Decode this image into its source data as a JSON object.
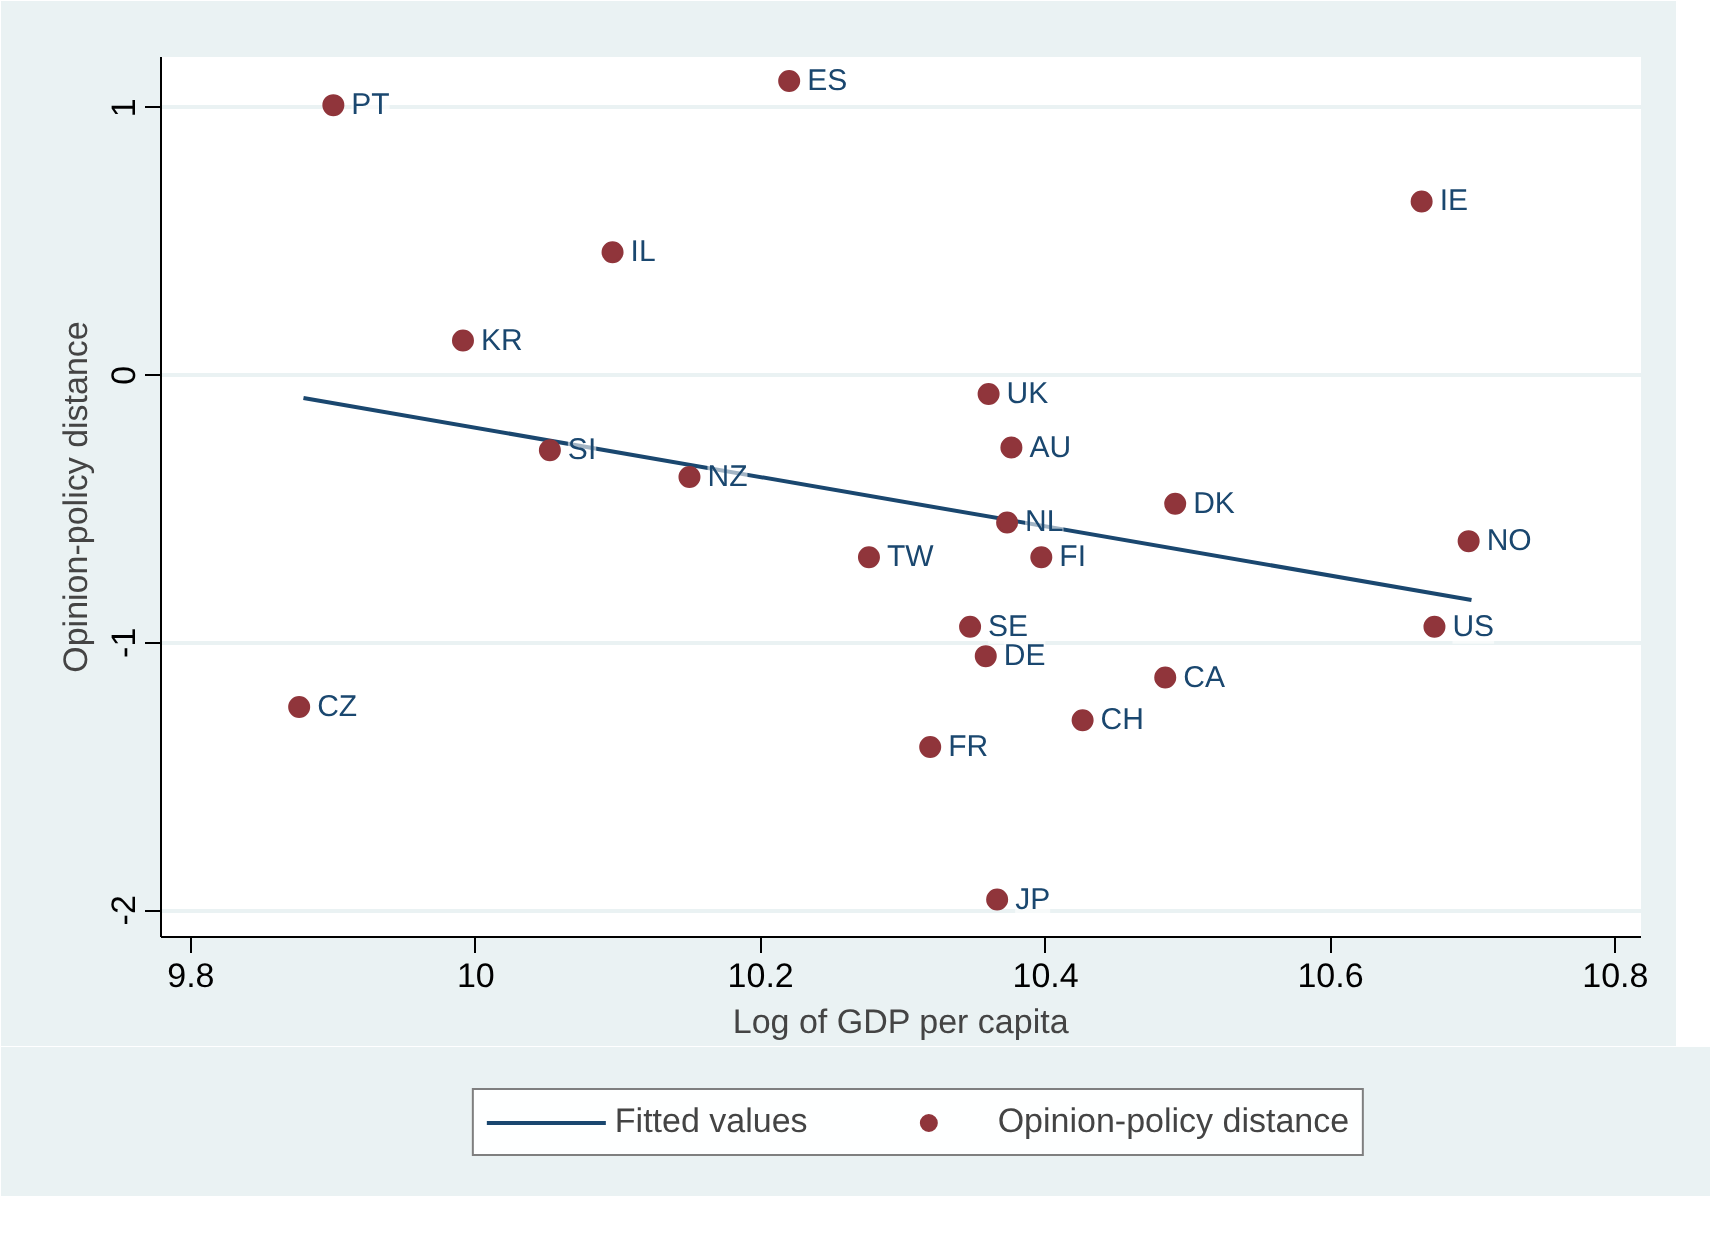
{
  "chart_data": {
    "type": "scatter",
    "xlabel": "Log of GDP per capita",
    "ylabel": "Opinion-policy distance",
    "xlim": [
      9.779,
      10.818
    ],
    "ylim": [
      -2.1,
      1.19
    ],
    "xticks": [
      9.8,
      10,
      10.2,
      10.4,
      10.6,
      10.8
    ],
    "yticks": [
      -2,
      -1,
      0,
      1
    ],
    "grid": "y",
    "legend": "bottom",
    "series": [
      {
        "name": "Fitted values",
        "type": "line",
        "color": "#1a476f",
        "line_style": "solid",
        "x": [
          9.879,
          10.699
        ],
        "values": [
          -0.085,
          -0.84
        ]
      },
      {
        "name": "Opinion-policy distance",
        "marker": "circle",
        "color": "#90353b",
        "x": [
          9.9,
          10.22,
          10.096,
          9.991,
          10.664,
          10.36,
          10.376,
          10.052,
          10.15,
          10.491,
          10.373,
          10.697,
          10.276,
          10.397,
          10.347,
          10.673,
          10.358,
          10.484,
          9.876,
          10.426,
          10.319,
          10.366
        ],
        "values": [
          1.01,
          1.1,
          0.46,
          0.13,
          0.65,
          -0.07,
          -0.27,
          -0.28,
          -0.38,
          -0.48,
          -0.55,
          -0.62,
          -0.68,
          -0.68,
          -0.94,
          -0.94,
          -1.05,
          -1.13,
          -1.24,
          -1.29,
          -1.39,
          -1.96
        ]
      }
    ],
    "annotations": [
      {
        "text": "PT",
        "x": 9.9,
        "y": 1.01
      },
      {
        "text": "ES",
        "x": 10.22,
        "y": 1.1
      },
      {
        "text": "IL",
        "x": 10.096,
        "y": 0.46
      },
      {
        "text": "KR",
        "x": 9.991,
        "y": 0.13
      },
      {
        "text": "IE",
        "x": 10.664,
        "y": 0.65
      },
      {
        "text": "UK",
        "x": 10.36,
        "y": -0.07
      },
      {
        "text": "AU",
        "x": 10.376,
        "y": -0.27
      },
      {
        "text": "SI",
        "x": 10.052,
        "y": -0.28
      },
      {
        "text": "NZ",
        "x": 10.15,
        "y": -0.38
      },
      {
        "text": "DK",
        "x": 10.491,
        "y": -0.48
      },
      {
        "text": "NL",
        "x": 10.373,
        "y": -0.55
      },
      {
        "text": "NO",
        "x": 10.697,
        "y": -0.62
      },
      {
        "text": "TW",
        "x": 10.276,
        "y": -0.68
      },
      {
        "text": "FI",
        "x": 10.397,
        "y": -0.68
      },
      {
        "text": "SE",
        "x": 10.347,
        "y": -0.94
      },
      {
        "text": "US",
        "x": 10.673,
        "y": -0.94
      },
      {
        "text": "DE",
        "x": 10.358,
        "y": -1.05
      },
      {
        "text": "CA",
        "x": 10.484,
        "y": -1.13
      },
      {
        "text": "CZ",
        "x": 9.876,
        "y": -1.24
      },
      {
        "text": "CH",
        "x": 10.426,
        "y": -1.29
      },
      {
        "text": "FR",
        "x": 10.319,
        "y": -1.39
      },
      {
        "text": "JP",
        "x": 10.366,
        "y": -1.96
      }
    ]
  }
}
